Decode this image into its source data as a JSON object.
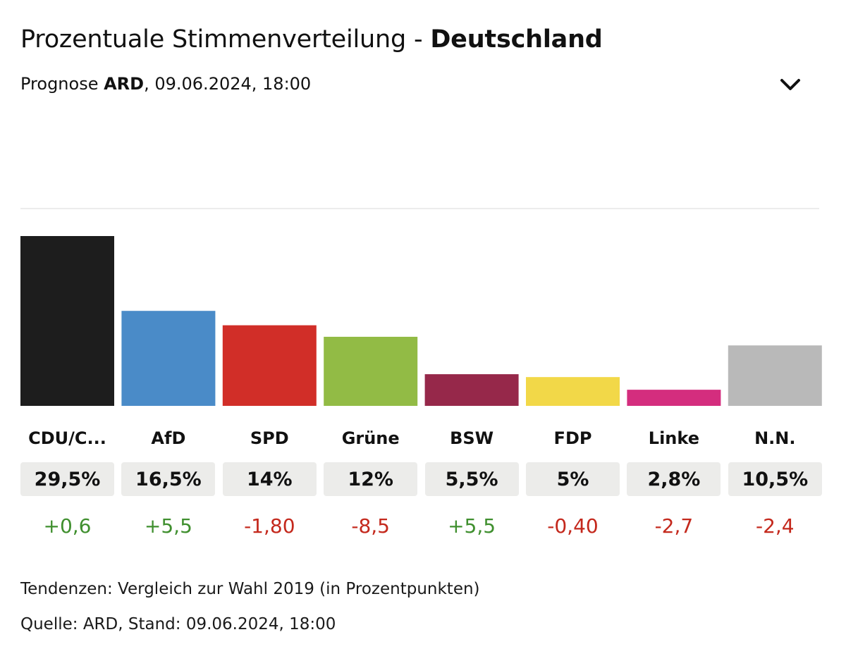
{
  "header": {
    "title_prefix": "Prozentuale Stimmenverteilung - ",
    "title_region": "Deutschland",
    "subtitle_prefix": "Prognose ",
    "subtitle_source": "ARD",
    "subtitle_suffix": ", 09.06.2024, 18:00",
    "expand_icon": "chevron-down-icon"
  },
  "colors": {
    "positive": "#3f8f2e",
    "negative": "#c4281c",
    "pill_bg": "#ececea",
    "divider": "#ececec"
  },
  "chart_data": {
    "type": "bar",
    "title": "Prozentuale Stimmenverteilung - Deutschland",
    "subtitle": "Prognose ARD, 09.06.2024, 18:00",
    "xlabel": "",
    "ylabel": "",
    "unit": "%",
    "ylim": [
      0,
      29.5
    ],
    "grid": false,
    "legend": "none",
    "categories": [
      "CDU/C...",
      "AfD",
      "SPD",
      "Grüne",
      "BSW",
      "FDP",
      "Linke",
      "N.N."
    ],
    "values": [
      29.5,
      16.5,
      14,
      12,
      5.5,
      5,
      2.8,
      10.5
    ],
    "value_labels": [
      "29,5%",
      "16,5%",
      "14%",
      "12%",
      "5,5%",
      "5%",
      "2,8%",
      "10,5%"
    ],
    "changes": [
      0.6,
      5.5,
      -1.8,
      -8.5,
      5.5,
      -0.4,
      -2.7,
      -2.4
    ],
    "change_labels": [
      "+0,6",
      "+5,5",
      "-1,80",
      "-8,5",
      "+5,5",
      "-0,40",
      "-2,7",
      "-2,4"
    ],
    "bar_colors": [
      "#1d1d1d",
      "#4a8bc8",
      "#d12e28",
      "#92bb45",
      "#96284a",
      "#f2d848",
      "#d42d7e",
      "#b9b9b9"
    ]
  },
  "footer": {
    "trend_note": "Tendenzen: Vergleich zur Wahl 2019 (in Prozentpunkten)",
    "source_note": "Quelle: ARD, Stand: 09.06.2024, 18:00"
  }
}
